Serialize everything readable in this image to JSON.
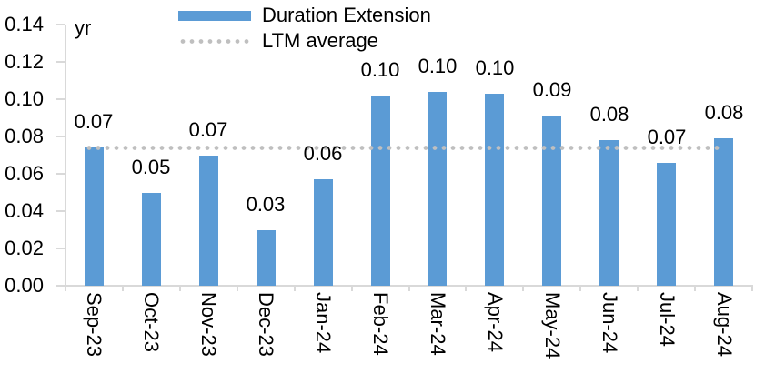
{
  "chart_data": {
    "type": "bar",
    "title": "",
    "unit_label": "yr",
    "categories": [
      "Sep-23",
      "Oct-23",
      "Nov-23",
      "Dec-23",
      "Jan-24",
      "Feb-24",
      "Mar-24",
      "Apr-24",
      "May-24",
      "Jun-24",
      "Jul-24",
      "Aug-24"
    ],
    "series": [
      {
        "name": "Duration Extension",
        "type": "bar",
        "color": "#5b9bd5",
        "values": [
          0.074,
          0.05,
          0.07,
          0.03,
          0.057,
          0.102,
          0.104,
          0.103,
          0.091,
          0.078,
          0.066,
          0.079
        ],
        "data_labels": [
          "0.07",
          "0.05",
          "0.07",
          "0.03",
          "0.06",
          "0.10",
          "0.10",
          "0.10",
          "0.09",
          "0.08",
          "0.07",
          "0.08"
        ]
      },
      {
        "name": "LTM average",
        "type": "dotted-line",
        "color": "#bfbfbf",
        "value": 0.0737
      }
    ],
    "xlabel": "",
    "ylabel": "yr",
    "ylim": [
      0,
      0.14
    ],
    "ytick_labels": [
      "0.00",
      "0.02",
      "0.04",
      "0.06",
      "0.08",
      "0.10",
      "0.12",
      "0.14"
    ],
    "grid": false,
    "legend_position": "top",
    "axis_color": "#d9d9d9",
    "text_color": "#000000"
  }
}
